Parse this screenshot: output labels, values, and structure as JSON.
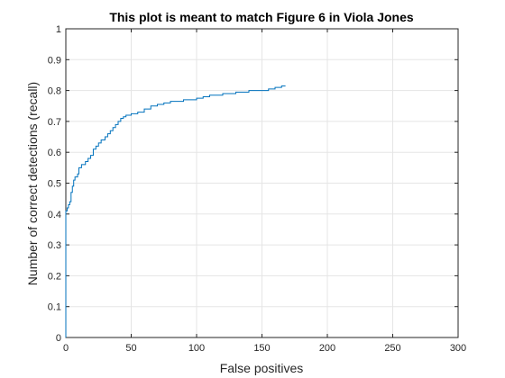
{
  "chart_data": {
    "type": "line",
    "title": "This plot is meant to match Figure 6 in Viola Jones",
    "xlabel": "False positives",
    "ylabel": "Number of correct detections (recall)",
    "xlim": [
      0,
      300
    ],
    "ylim": [
      0,
      1
    ],
    "xticks": [
      0,
      50,
      100,
      150,
      200,
      250,
      300
    ],
    "yticks": [
      0,
      0.1,
      0.2,
      0.3,
      0.4,
      0.5,
      0.6,
      0.7,
      0.8,
      0.9,
      1
    ],
    "xtick_labels": [
      "0",
      "50",
      "100",
      "150",
      "200",
      "250",
      "300"
    ],
    "ytick_labels": [
      "0",
      "0.1",
      "0.2",
      "0.3",
      "0.4",
      "0.5",
      "0.6",
      "0.7",
      "0.8",
      "0.9",
      "1"
    ],
    "grid": true,
    "colors": {
      "series": "#0072bd",
      "grid": "#e5e5e5",
      "axis": "#262626"
    },
    "series": [
      {
        "x": [
          0,
          0,
          0,
          0,
          1,
          2,
          3,
          4,
          5,
          6,
          7,
          9,
          10,
          12,
          15,
          17,
          19,
          21,
          23,
          25,
          27,
          30,
          32,
          34,
          36,
          38,
          40,
          42,
          44,
          46,
          50,
          55,
          60,
          65,
          70,
          75,
          80,
          90,
          100,
          105,
          110,
          120,
          130,
          140,
          150,
          155,
          160,
          165,
          168
        ],
        "y": [
          0.0,
          0.1,
          0.3,
          0.41,
          0.42,
          0.43,
          0.44,
          0.47,
          0.49,
          0.51,
          0.52,
          0.53,
          0.55,
          0.56,
          0.57,
          0.58,
          0.59,
          0.61,
          0.62,
          0.63,
          0.64,
          0.65,
          0.66,
          0.67,
          0.68,
          0.69,
          0.7,
          0.71,
          0.715,
          0.72,
          0.725,
          0.73,
          0.74,
          0.75,
          0.755,
          0.76,
          0.765,
          0.77,
          0.775,
          0.78,
          0.785,
          0.79,
          0.795,
          0.8,
          0.8,
          0.805,
          0.81,
          0.815,
          0.815
        ]
      }
    ]
  }
}
